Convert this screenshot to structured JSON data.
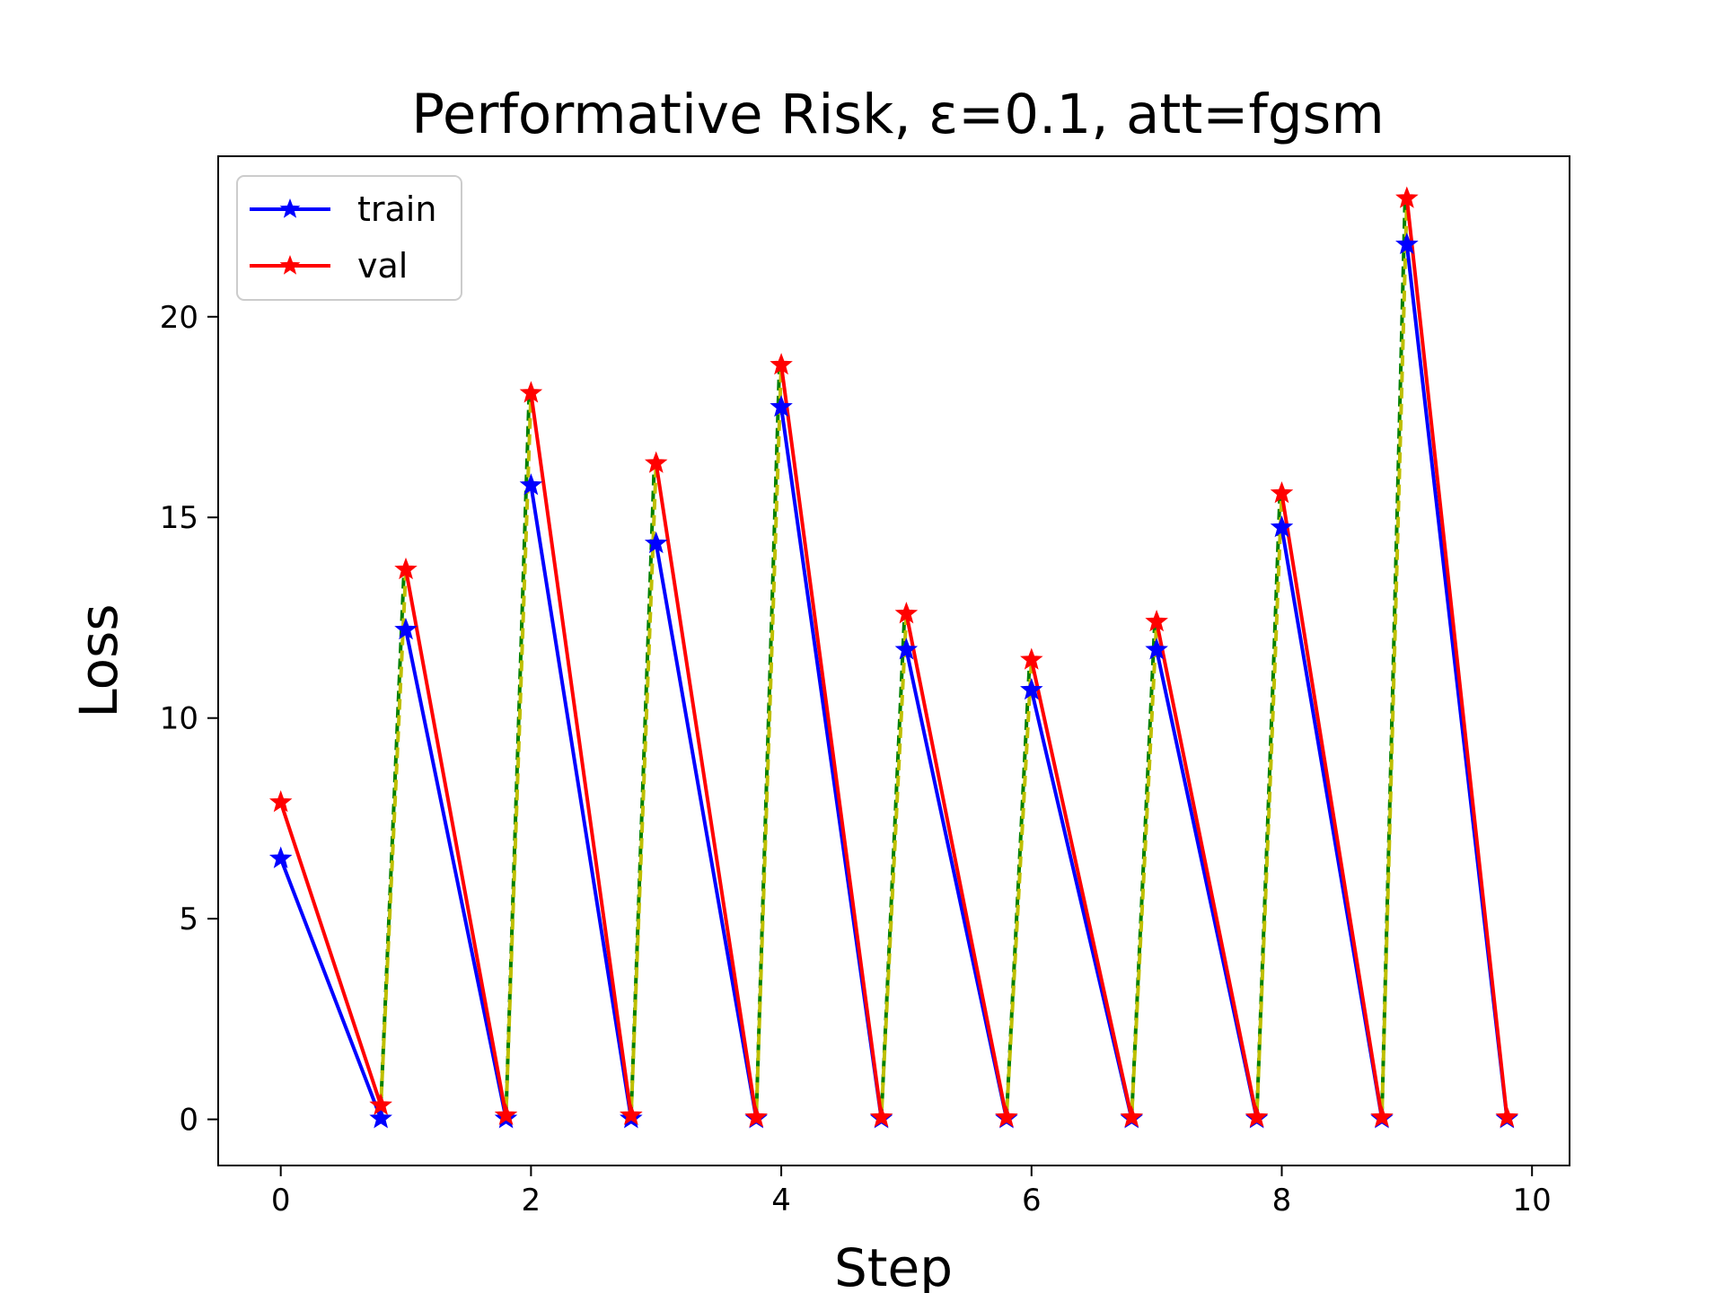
{
  "chart_data": {
    "type": "line",
    "title": "Performative Risk, ε=0.1, att=fgsm",
    "xlabel": "Step",
    "ylabel": "Loss",
    "xlim": [
      -0.5,
      10.3
    ],
    "ylim": [
      -1.15,
      24.0
    ],
    "xticks": [
      0,
      2,
      4,
      6,
      8,
      10
    ],
    "yticks": [
      0,
      5,
      10,
      15,
      20
    ],
    "grid": false,
    "legend_position": "top-left",
    "series": [
      {
        "name": "train",
        "color": "#0000ff",
        "marker": "star",
        "points": [
          [
            0,
            6.5
          ],
          [
            0.8,
            0.02
          ],
          [
            1,
            12.2
          ],
          [
            1.8,
            0.02
          ],
          [
            2,
            15.8
          ],
          [
            2.8,
            0.02
          ],
          [
            3,
            14.35
          ],
          [
            3.8,
            0.02
          ],
          [
            4,
            17.75
          ],
          [
            4.8,
            0.02
          ],
          [
            5,
            11.7
          ],
          [
            5.8,
            0.02
          ],
          [
            6,
            10.7
          ],
          [
            6.8,
            0.02
          ],
          [
            7,
            11.7
          ],
          [
            7.8,
            0.02
          ],
          [
            8,
            14.75
          ],
          [
            8.8,
            0.02
          ],
          [
            9,
            21.8
          ],
          [
            9.8,
            0.02
          ]
        ]
      },
      {
        "name": "val",
        "color": "#ff0000",
        "marker": "star",
        "points": [
          [
            0,
            7.9
          ],
          [
            0.8,
            0.35
          ],
          [
            1,
            13.7
          ],
          [
            1.8,
            0.1
          ],
          [
            2,
            18.1
          ],
          [
            2.8,
            0.1
          ],
          [
            3,
            16.35
          ],
          [
            3.8,
            0.05
          ],
          [
            4,
            18.8
          ],
          [
            4.8,
            0.05
          ],
          [
            5,
            12.6
          ],
          [
            5.8,
            0.05
          ],
          [
            6,
            11.45
          ],
          [
            6.8,
            0.05
          ],
          [
            7,
            12.4
          ],
          [
            7.8,
            0.05
          ],
          [
            8,
            15.6
          ],
          [
            8.8,
            0.05
          ],
          [
            9,
            22.95
          ],
          [
            9.8,
            0.05
          ]
        ]
      }
    ],
    "connectors": {
      "style": "dashed",
      "colors": [
        "#008000",
        "#bfbf00"
      ],
      "segments": [
        [
          0.8,
          1
        ],
        [
          1.8,
          2
        ],
        [
          2.8,
          3
        ],
        [
          3.8,
          4
        ],
        [
          4.8,
          5
        ],
        [
          5.8,
          6
        ],
        [
          6.8,
          7
        ],
        [
          7.8,
          8
        ],
        [
          8.8,
          9
        ]
      ]
    }
  }
}
